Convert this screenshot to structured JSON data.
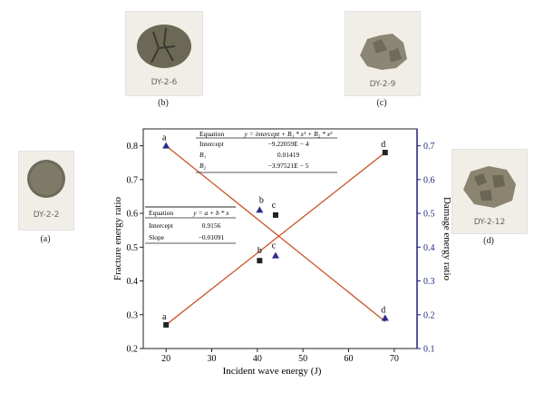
{
  "photos": [
    {
      "label": "(a)",
      "tag": "DY-2-2"
    },
    {
      "label": "(b)",
      "tag": "DY-2-6"
    },
    {
      "label": "(c)",
      "tag": "DY-2-9"
    },
    {
      "label": "(d)",
      "tag": "DY-2-12"
    }
  ],
  "chart_data": {
    "type": "scatter",
    "xlabel": "Incident wave energy (J)",
    "ylabel_left": "Fracture energy ratio",
    "ylabel_right": "Damage energy ratio",
    "xlim": [
      15,
      75
    ],
    "ylim_left": [
      0.2,
      0.85
    ],
    "ylim_right": [
      0.1,
      0.75
    ],
    "xticks": [
      "20",
      "30",
      "40",
      "50",
      "60",
      "70"
    ],
    "yticks_left": [
      "0.2",
      "0.3",
      "0.4",
      "0.5",
      "0.6",
      "0.7",
      "0.8"
    ],
    "yticks_right": [
      "0.1",
      "0.2",
      "0.3",
      "0.4",
      "0.5",
      "0.6",
      "0.7"
    ],
    "colors": {
      "fracture": "#222222",
      "damage": "#2a2a8c",
      "fit": "#c8552a",
      "right_axis": "#1f1f7a"
    },
    "series": [
      {
        "axis": "left",
        "marker": "square",
        "x": [
          20,
          40.5,
          44,
          68
        ],
        "y": [
          0.27,
          0.46,
          0.595,
          0.78
        ],
        "labels": [
          "a",
          "b",
          "c",
          "d"
        ]
      },
      {
        "axis": "right",
        "marker": "triangle",
        "x": [
          20,
          40.5,
          44,
          68
        ],
        "y": [
          0.7,
          0.51,
          0.375,
          0.19
        ],
        "labels": [
          "a",
          "b",
          "c",
          "d"
        ]
      }
    ],
    "fit_lines": [
      {
        "axis": "left",
        "x": [
          20,
          68
        ],
        "y": [
          0.27,
          0.78
        ]
      },
      {
        "axis": "right",
        "x": [
          20,
          68
        ],
        "y": [
          0.7,
          0.18
        ]
      }
    ],
    "table_right": {
      "rows": [
        [
          "Equation",
          "y = intercept + B₁ * x¹ + B₂ * x²"
        ],
        [
          "Intercept",
          "−9.22059E − 4"
        ],
        [
          "B₁",
          "0.01419"
        ],
        [
          "B₂",
          "−3.97521E − 5"
        ]
      ]
    },
    "table_left": {
      "rows": [
        [
          "Equation",
          "y = a + b * x"
        ],
        [
          "Intercept",
          "0.9156"
        ],
        [
          "Slope",
          "−0.01091"
        ]
      ]
    }
  }
}
